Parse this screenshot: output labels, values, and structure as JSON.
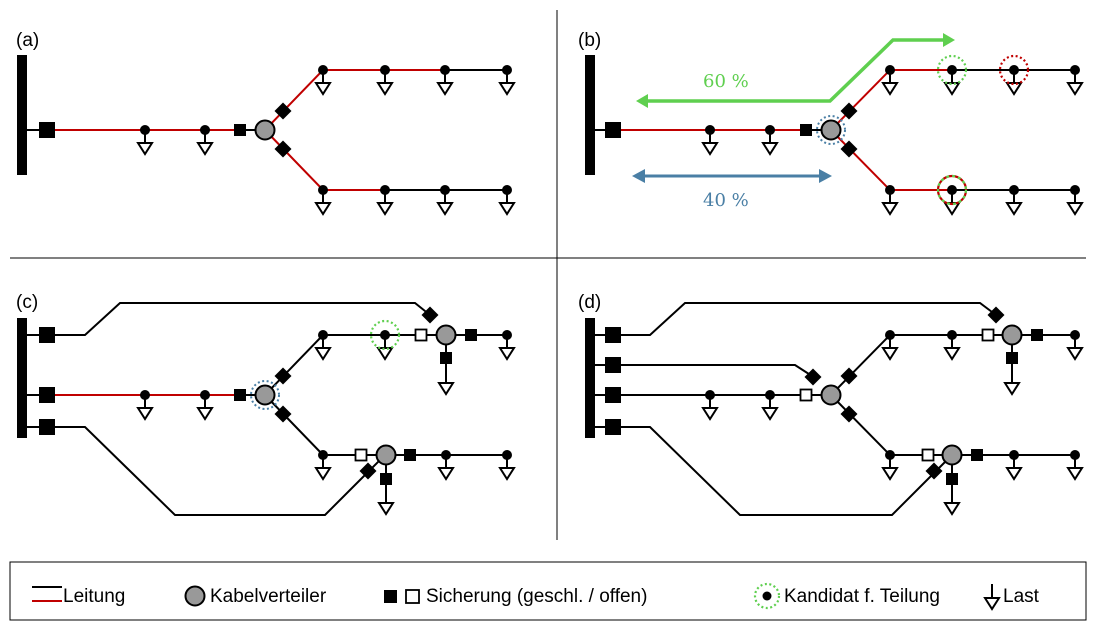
{
  "panels": [
    {
      "label": "(a)"
    },
    {
      "label": "(b)",
      "pct_green": "60 %",
      "pct_blue": "40 %"
    },
    {
      "label": "(c)"
    },
    {
      "label": "(d)"
    }
  ],
  "legend": {
    "line": "Leitung",
    "distributor": "Kabelverteiler",
    "fuse": "Sicherung (geschl. / offen)",
    "candidate": "Kandidat f. Teilung",
    "load": "Last"
  },
  "colors": {
    "line": "#000000",
    "feeder_red": "#c00000",
    "green": "#5fcf4f",
    "blue": "#4a7fa5",
    "red_dotted": "#c00000",
    "distributor_fill": "#999999"
  }
}
